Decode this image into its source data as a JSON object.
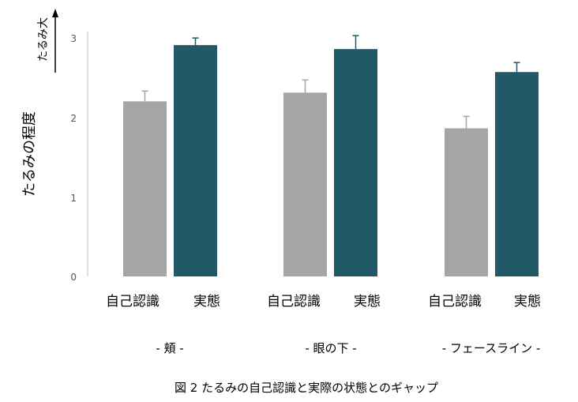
{
  "chart_data": {
    "type": "bar",
    "ylabel": "たるみの程度",
    "ylabel_arrow": "たるみ大",
    "caption": "図 2 たるみの自己認識と実際の状態とのギャップ",
    "ylim": [
      0,
      3
    ],
    "yticks": [
      "0",
      "1",
      "2",
      "3"
    ],
    "groups": [
      "- 頬 -",
      "- 眼の下 -",
      "- フェースライン -"
    ],
    "series": [
      {
        "name": "自己認識",
        "color": "#a5a5a5",
        "values": [
          2.21,
          2.32,
          1.87
        ],
        "errors": [
          0.13,
          0.16,
          0.15
        ]
      },
      {
        "name": "実態",
        "color": "#215967",
        "values": [
          2.92,
          2.87,
          2.58
        ],
        "errors": [
          0.09,
          0.17,
          0.12
        ]
      }
    ],
    "grid": false
  }
}
